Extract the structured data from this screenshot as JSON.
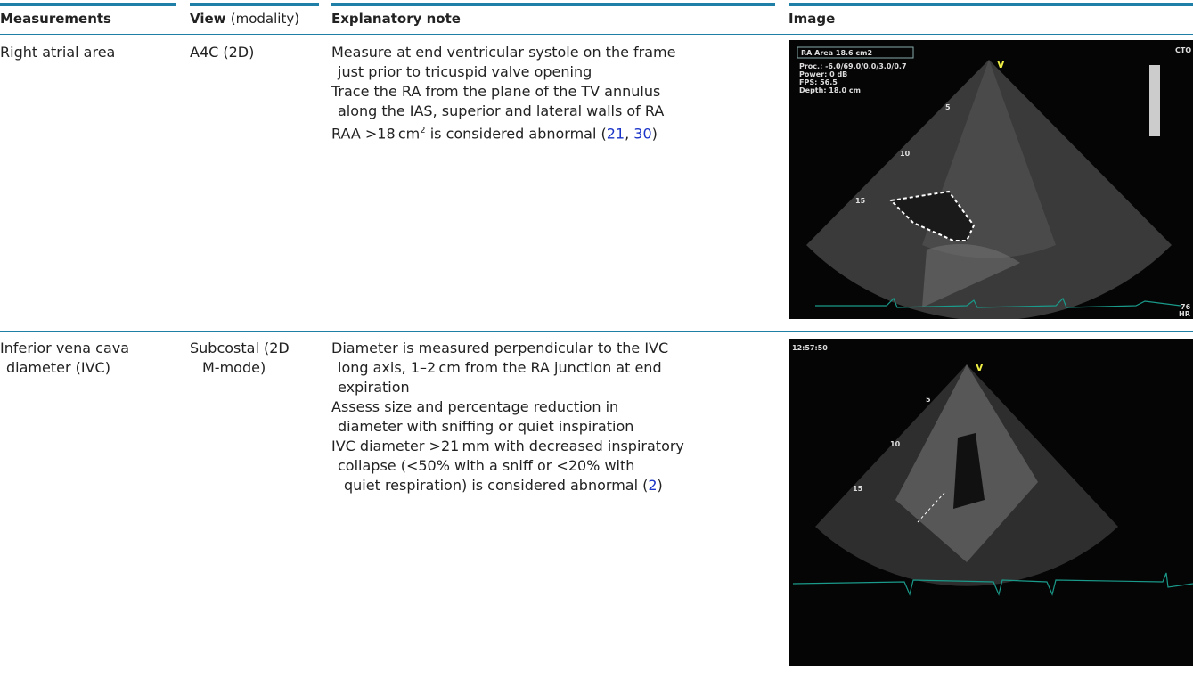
{
  "table": {
    "header": {
      "measurements": "Measurements",
      "view": "View",
      "modality": "(modality)",
      "note": "Explanatory note",
      "image": "Image"
    },
    "rows": [
      {
        "measurement": [
          "Right atrial area"
        ],
        "view": [
          "A4C (2D)"
        ],
        "note": [
          "Measure at end ventricular systole on the frame",
          "just prior to tricuspid valve opening",
          "Trace the RA from the plane of the TV annulus",
          "along the IAS, superior and lateral walls of RA",
          [
            "RAA >18 cm",
            "2",
            " is considered abnormal (",
            "21",
            ", ",
            "30",
            ")"
          ]
        ],
        "image": {
          "label": "RA Area 18.6 cm2",
          "settings": [
            "Proc.: -6.0/69.0/0.0/3.0/0.7",
            "Power: 0 dB",
            "FPS: 56.5",
            "Depth: 18.0 cm"
          ],
          "marker": "V",
          "depths": [
            "5",
            "10",
            "15"
          ],
          "corner": "CTO",
          "hr": "76",
          "hr_unit": "HR"
        }
      },
      {
        "measurement": [
          "Inferior vena cava",
          "diameter (IVC)"
        ],
        "view": [
          "Subcostal (2D",
          "M-mode)"
        ],
        "note": [
          "Diameter is measured perpendicular to the IVC",
          "long axis, 1–2 cm from the RA junction at end",
          "expiration",
          "Assess size and percentage reduction in",
          "diameter with sniffing or quiet inspiration",
          "IVC diameter >21 mm with decreased inspiratory",
          "collapse (<50% with a sniff or <20% with",
          [
            "quiet respiration) is considered abnormal (",
            "2",
            ")"
          ]
        ],
        "image": {
          "time": "12:57:50",
          "marker": "V",
          "depths": [
            "5",
            "10",
            "15"
          ]
        }
      }
    ]
  }
}
